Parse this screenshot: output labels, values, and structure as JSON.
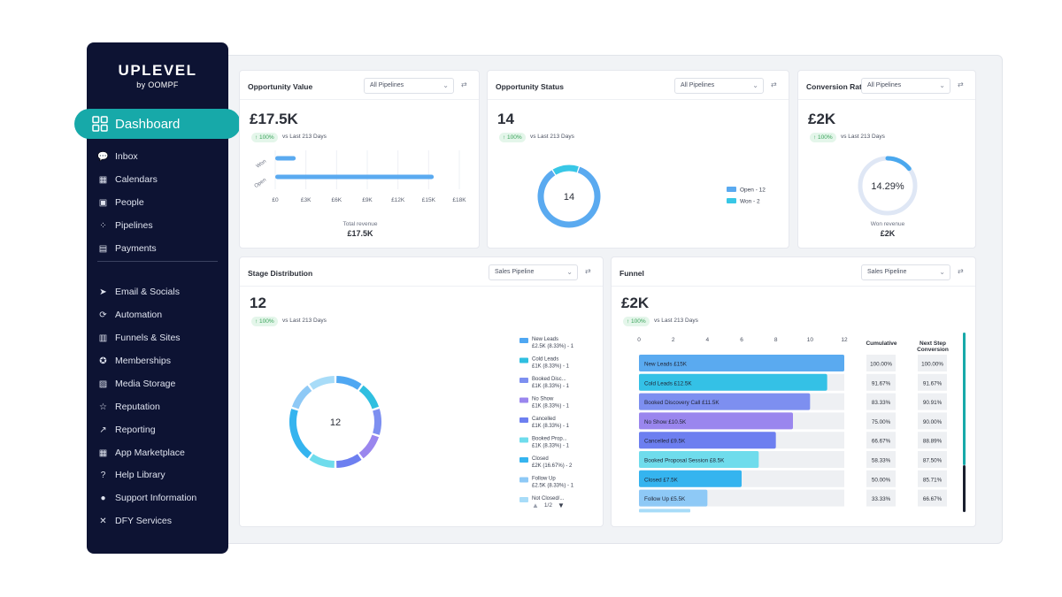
{
  "brand": {
    "name": "UPLEVEL",
    "sub": "by OOMPF"
  },
  "sidebar": {
    "active": "Dashboard",
    "items": [
      {
        "label": "Inbox",
        "icon": "chat-icon"
      },
      {
        "label": "Calendars",
        "icon": "calendar-icon"
      },
      {
        "label": "People",
        "icon": "contacts-icon"
      },
      {
        "label": "Pipelines",
        "icon": "pipeline-icon"
      },
      {
        "label": "Payments",
        "icon": "payments-icon"
      },
      {
        "label": "Email & Socials",
        "icon": "send-icon"
      },
      {
        "label": "Automation",
        "icon": "automation-icon"
      },
      {
        "label": "Funnels & Sites",
        "icon": "funnel-icon"
      },
      {
        "label": "Memberships",
        "icon": "badge-icon"
      },
      {
        "label": "Media Storage",
        "icon": "image-icon"
      },
      {
        "label": "Reputation",
        "icon": "star-icon"
      },
      {
        "label": "Reporting",
        "icon": "trend-icon"
      },
      {
        "label": "App Marketplace",
        "icon": "grid-icon"
      },
      {
        "label": "Help Library",
        "icon": "question-icon"
      },
      {
        "label": "Support Information",
        "icon": "info-icon"
      },
      {
        "label": "DFY Services",
        "icon": "tools-icon"
      }
    ]
  },
  "cards": {
    "opportunity_value": {
      "title": "Opportunity Value",
      "select": "All Pipelines",
      "value": "£17.5K",
      "badge": "↑ 100%",
      "vs": "vs Last 213 Days",
      "footer_label": "Total revenue",
      "footer_value": "£17.5K"
    },
    "opportunity_status": {
      "title": "Opportunity Status",
      "select": "All Pipelines",
      "value": "14",
      "badge": "↑ 100%",
      "vs": "vs Last 213 Days",
      "center": "14"
    },
    "conversion_rate": {
      "title": "Conversion Rat",
      "select": "All Pipelines",
      "value": "£2K",
      "badge": "↑ 100%",
      "vs": "vs Last 213 Days",
      "center": "14.29%",
      "footer_label": "Won revenue",
      "footer_value": "£2K"
    },
    "stage_distribution": {
      "title": "Stage Distribution",
      "select": "Sales Pipeline",
      "value": "12",
      "badge": "↑ 100%",
      "vs": "vs Last 213 Days",
      "center": "12",
      "pager": "1/2"
    },
    "funnel": {
      "title": "Funnel",
      "select": "Sales Pipeline",
      "value": "£2K",
      "badge": "↑ 100%",
      "vs": "vs Last 213 Days",
      "col_cumulative": "Cumulative",
      "col_next_1": "Next Step",
      "col_next_2": "Conversion"
    }
  },
  "chart_data": [
    {
      "type": "bar",
      "orientation": "horizontal",
      "categories": [
        "Won",
        "Open"
      ],
      "values": [
        2,
        15.5
      ],
      "xlabel": "Total revenue",
      "x_ticks": [
        "£0",
        "£3K",
        "£6K",
        "£9K",
        "£12K",
        "£15K",
        "£18K"
      ],
      "xlim": [
        0,
        18
      ],
      "unit": "£K",
      "color": "#5aaaf0"
    },
    {
      "type": "pie",
      "variant": "donut",
      "categories": [
        "Open",
        "Won"
      ],
      "values": [
        12,
        2
      ],
      "legend": [
        "Open - 12",
        "Won - 2"
      ],
      "colors": [
        "#5aaaf0",
        "#38c7e6"
      ],
      "legend_position": "right"
    },
    {
      "type": "pie",
      "variant": "donut",
      "categories": [
        "Won",
        "Remaining"
      ],
      "values": [
        14.29,
        85.71
      ],
      "colors": [
        "#4aa8ee",
        "#dfe7f5"
      ]
    },
    {
      "type": "pie",
      "variant": "donut",
      "categories": [
        "New Leads",
        "Cold Leads",
        "Booked Disc...",
        "No Show",
        "Cancelled",
        "Booked Prop...",
        "Closed",
        "Follow Up",
        "Not Closed/..."
      ],
      "values": [
        1,
        1,
        1,
        1,
        1,
        1,
        2,
        1,
        1
      ],
      "legend": [
        {
          "name": "New Leads",
          "detail": "£2.5K (8.33%) - 1",
          "color": "#4fa7f2"
        },
        {
          "name": "Cold Leads",
          "detail": "£1K (8.33%) - 1",
          "color": "#2fbfe0"
        },
        {
          "name": "Booked Disc...",
          "detail": "£1K (8.33%) - 1",
          "color": "#7d8ff0"
        },
        {
          "name": "No Show",
          "detail": "£1K (8.33%) - 1",
          "color": "#9a86ee"
        },
        {
          "name": "Cancelled",
          "detail": "£1K (8.33%) - 1",
          "color": "#6d7ff0"
        },
        {
          "name": "Booked Prop...",
          "detail": "£1K (8.33%) - 1",
          "color": "#6fdcec"
        },
        {
          "name": "Closed",
          "detail": "£2K (16.67%) - 2",
          "color": "#35b4ef"
        },
        {
          "name": "Follow Up",
          "detail": "£2.5K (8.33%) - 1",
          "color": "#8ec9f6"
        },
        {
          "name": "Not Closed/...",
          "detail": "",
          "color": "#a8dcf8"
        }
      ],
      "legend_position": "right"
    },
    {
      "type": "bar",
      "orientation": "horizontal",
      "variant": "funnel",
      "x_ticks": [
        "0",
        "2",
        "4",
        "6",
        "8",
        "10",
        "12"
      ],
      "xlim": [
        0,
        12
      ],
      "categories": [
        "New Leads",
        "Cold Leads",
        "Booked Discovery Call",
        "No Show",
        "Cancelled",
        "Booked Proposal Session",
        "Closed",
        "Follow Up"
      ],
      "labels": [
        "New Leads  £15K",
        "Cold Leads  £12.5K",
        "Booked Discovery Call  £11.5K",
        "No Show  £10.5K",
        "Cancelled  £9.5K",
        "Booked Proposal Session  £8.5K",
        "Closed  £7.5K",
        "Follow Up  £5.5K"
      ],
      "values": [
        12,
        11,
        10,
        9,
        8,
        7,
        6,
        4
      ],
      "colors": [
        "#5aaaf0",
        "#34c1e6",
        "#7d8ff0",
        "#9a86ee",
        "#6d7ff0",
        "#6fdcec",
        "#35b4ef",
        "#8ec9f6"
      ],
      "cumulative": [
        "100.00%",
        "91.67%",
        "83.33%",
        "75.00%",
        "66.67%",
        "58.33%",
        "50.00%",
        "33.33%"
      ],
      "next_step_conversion": [
        "100.00%",
        "91.67%",
        "90.91%",
        "90.00%",
        "88.89%",
        "87.50%",
        "85.71%",
        "66.67%"
      ]
    }
  ]
}
